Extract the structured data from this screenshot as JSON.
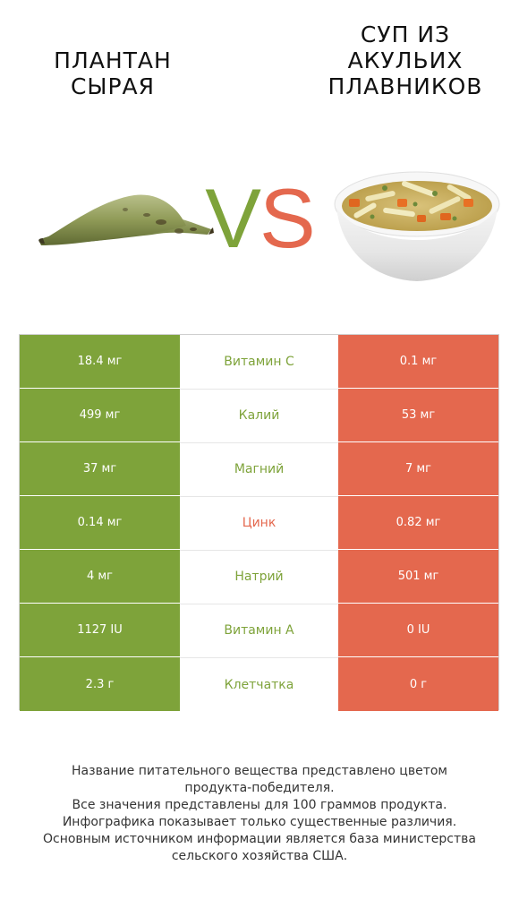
{
  "header": {
    "left_title_lines": [
      "Плантан",
      "сырая"
    ],
    "right_title_lines": [
      "Суп из",
      "акульих",
      "плавников"
    ],
    "vs_v": "V",
    "vs_s": "S"
  },
  "colors": {
    "left_food": "#7ea33a",
    "right_food": "#e4684e",
    "neutral_border": "#cfcfcf"
  },
  "table": {
    "rows": [
      {
        "left": "18.4 мг",
        "nutrient": "Витамин C",
        "right": "0.1 мг",
        "winner": "left"
      },
      {
        "left": "499 мг",
        "nutrient": "Калий",
        "right": "53 мг",
        "winner": "left"
      },
      {
        "left": "37 мг",
        "nutrient": "Магний",
        "right": "7 мг",
        "winner": "left"
      },
      {
        "left": "0.14 мг",
        "nutrient": "Цинк",
        "right": "0.82 мг",
        "winner": "right"
      },
      {
        "left": "4 мг",
        "nutrient": "Натрий",
        "right": "501 мг",
        "winner": "left"
      },
      {
        "left": "1127 IU",
        "nutrient": "Витамин A",
        "right": "0 IU",
        "winner": "left"
      },
      {
        "left": "2.3 г",
        "nutrient": "Клетчатка",
        "right": "0 г",
        "winner": "left"
      }
    ]
  },
  "footnote": {
    "lines": [
      "Название питательного вещества представлено цветом",
      "продукта-победителя.",
      "Все значения представлены для 100 граммов продукта.",
      "Инфографика показывает только существенные различия.",
      "Основным источником информации является база министерства",
      "сельского хозяйства США."
    ]
  },
  "images": {
    "left": "plantain-image",
    "right": "soup-bowl-image"
  }
}
